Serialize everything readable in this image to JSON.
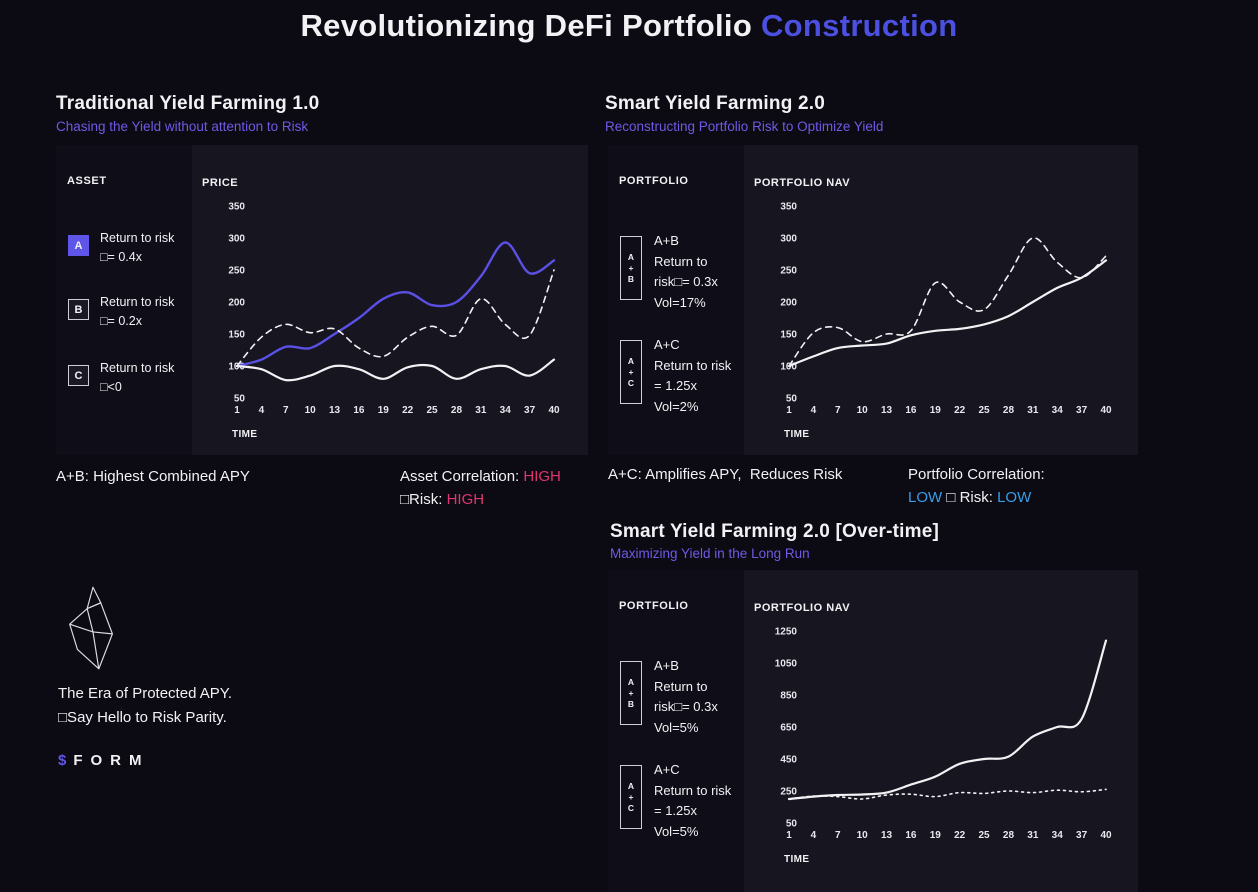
{
  "page": {
    "title_main": "Revolutionizing DeFi Portfolio ",
    "title_accent": "Construction"
  },
  "colors": {
    "accent_blue": "#4b50e0",
    "subheading_purple": "#6e5be4",
    "high_pink": "#e0366f",
    "low_blue": "#3b9de8",
    "line_purple": "#5b50e6",
    "line_white": "#f2f2f5",
    "background": "#0c0a13",
    "panel": "#17151f",
    "panel_sidebar": "#0f0d17"
  },
  "sections": {
    "traditional": {
      "heading": "Traditional Yield Farming 1.0",
      "subheading": "Chasing the Yield without attention to Risk",
      "sidebar_title": "ASSET",
      "assets": [
        {
          "badge": "A",
          "line1": "Return to risk",
          "line2": "□= 0.4x"
        },
        {
          "badge": "B",
          "line1": "Return to risk",
          "line2": "□= 0.2x"
        },
        {
          "badge": "C",
          "line1": "Return to risk",
          "line2": "□<0"
        }
      ],
      "footnote_left": "A+B: Highest Combined APY",
      "corr_label": "Asset Correlation: ",
      "corr_value": "HIGH",
      "risk_label": "□Risk: ",
      "risk_value": "HIGH"
    },
    "smart": {
      "heading": "Smart Yield Farming 2.0",
      "subheading": "Reconstructing Portfolio Risk to Optimize Yield",
      "sidebar_title": "PORTFOLIO",
      "portfolios": [
        {
          "badge": [
            "A",
            "+",
            "B"
          ],
          "lines": [
            "A+B",
            "Return to",
            "risk□= 0.3x",
            "Vol=17%"
          ]
        },
        {
          "badge": [
            "A",
            "+",
            "C"
          ],
          "lines": [
            "A+C",
            "Return to risk",
            "= 1.25x",
            "Vol=2%"
          ]
        }
      ],
      "footnote_left": "A+C: Amplifies APY,  Reduces Risk",
      "corr_label": "Portfolio Correlation:",
      "corr_value": "LOW",
      "risk_label": " □ Risk: ",
      "risk_value": "LOW"
    },
    "overtime": {
      "heading": "Smart Yield Farming 2.0 [Over-time]",
      "subheading": "Maximizing Yield in the Long Run",
      "sidebar_title": "PORTFOLIO",
      "portfolios": [
        {
          "badge": [
            "A",
            "+",
            "B"
          ],
          "lines": [
            "A+B",
            "Return to",
            "risk□= 0.3x",
            "Vol=5%"
          ]
        },
        {
          "badge": [
            "A",
            "+",
            "C"
          ],
          "lines": [
            "A+C",
            "Return to risk",
            "= 1.25x",
            "Vol=5%"
          ]
        }
      ]
    }
  },
  "brand": {
    "tagline1": "The Era of Protected APY.",
    "tagline2": "□Say Hello to Risk Parity.",
    "logo_symbol": "$",
    "logo_text": "FORM"
  },
  "chart_data": [
    {
      "type": "line",
      "title": "PRICE",
      "xlabel": "TIME",
      "x": [
        1,
        4,
        7,
        10,
        13,
        16,
        19,
        22,
        25,
        28,
        31,
        34,
        37,
        40
      ],
      "y_ticks": [
        350,
        300,
        250,
        200,
        150,
        100,
        50
      ],
      "ylim": [
        50,
        350
      ],
      "grid": false,
      "legend": "none",
      "series": [
        {
          "name": "A",
          "style": "solid",
          "color": "#5b50e6",
          "width": 2.4,
          "values": [
            100,
            110,
            130,
            128,
            150,
            175,
            205,
            215,
            195,
            200,
            240,
            293,
            245,
            265
          ]
        },
        {
          "name": "B",
          "style": "dashed",
          "color": "#f2f2f5",
          "width": 1.6,
          "values": [
            100,
            145,
            165,
            152,
            158,
            128,
            115,
            145,
            162,
            148,
            205,
            165,
            148,
            250
          ]
        },
        {
          "name": "C",
          "style": "solid",
          "color": "#f2f2f5",
          "width": 2.2,
          "values": [
            100,
            95,
            78,
            85,
            100,
            95,
            80,
            98,
            100,
            80,
            95,
            100,
            85,
            110
          ]
        }
      ]
    },
    {
      "type": "line",
      "title": "PORTFOLIO NAV",
      "xlabel": "TIME",
      "x": [
        1,
        4,
        7,
        10,
        13,
        16,
        19,
        22,
        25,
        28,
        31,
        34,
        37,
        40
      ],
      "y_ticks": [
        350,
        300,
        250,
        200,
        150,
        100,
        50
      ],
      "ylim": [
        50,
        350
      ],
      "grid": false,
      "legend": "none",
      "series": [
        {
          "name": "A+B",
          "style": "dashed",
          "color": "#f2f2f5",
          "width": 1.6,
          "values": [
            100,
            152,
            160,
            138,
            150,
            155,
            230,
            200,
            188,
            242,
            300,
            262,
            238,
            272
          ]
        },
        {
          "name": "A+C",
          "style": "solid",
          "color": "#f2f2f5",
          "width": 2.2,
          "values": [
            100,
            115,
            128,
            132,
            135,
            148,
            155,
            158,
            165,
            178,
            200,
            222,
            238,
            265
          ]
        }
      ]
    },
    {
      "type": "line",
      "title": "PORTFOLIO NAV",
      "xlabel": "TIME",
      "x": [
        1,
        4,
        7,
        10,
        13,
        16,
        19,
        22,
        25,
        28,
        31,
        34,
        37,
        40
      ],
      "y_ticks": [
        1250,
        1050,
        850,
        650,
        450,
        250,
        50
      ],
      "ylim": [
        50,
        1250
      ],
      "grid": false,
      "legend": "none",
      "series": [
        {
          "name": "A+B",
          "style": "dotted",
          "color": "#f2f2f5",
          "width": 1.6,
          "values": [
            200,
            218,
            215,
            200,
            225,
            230,
            215,
            240,
            235,
            250,
            240,
            255,
            245,
            260
          ]
        },
        {
          "name": "A+C",
          "style": "solid",
          "color": "#f2f2f5",
          "width": 2.2,
          "values": [
            200,
            215,
            225,
            228,
            240,
            290,
            340,
            420,
            450,
            465,
            590,
            650,
            700,
            1190
          ]
        }
      ]
    }
  ]
}
